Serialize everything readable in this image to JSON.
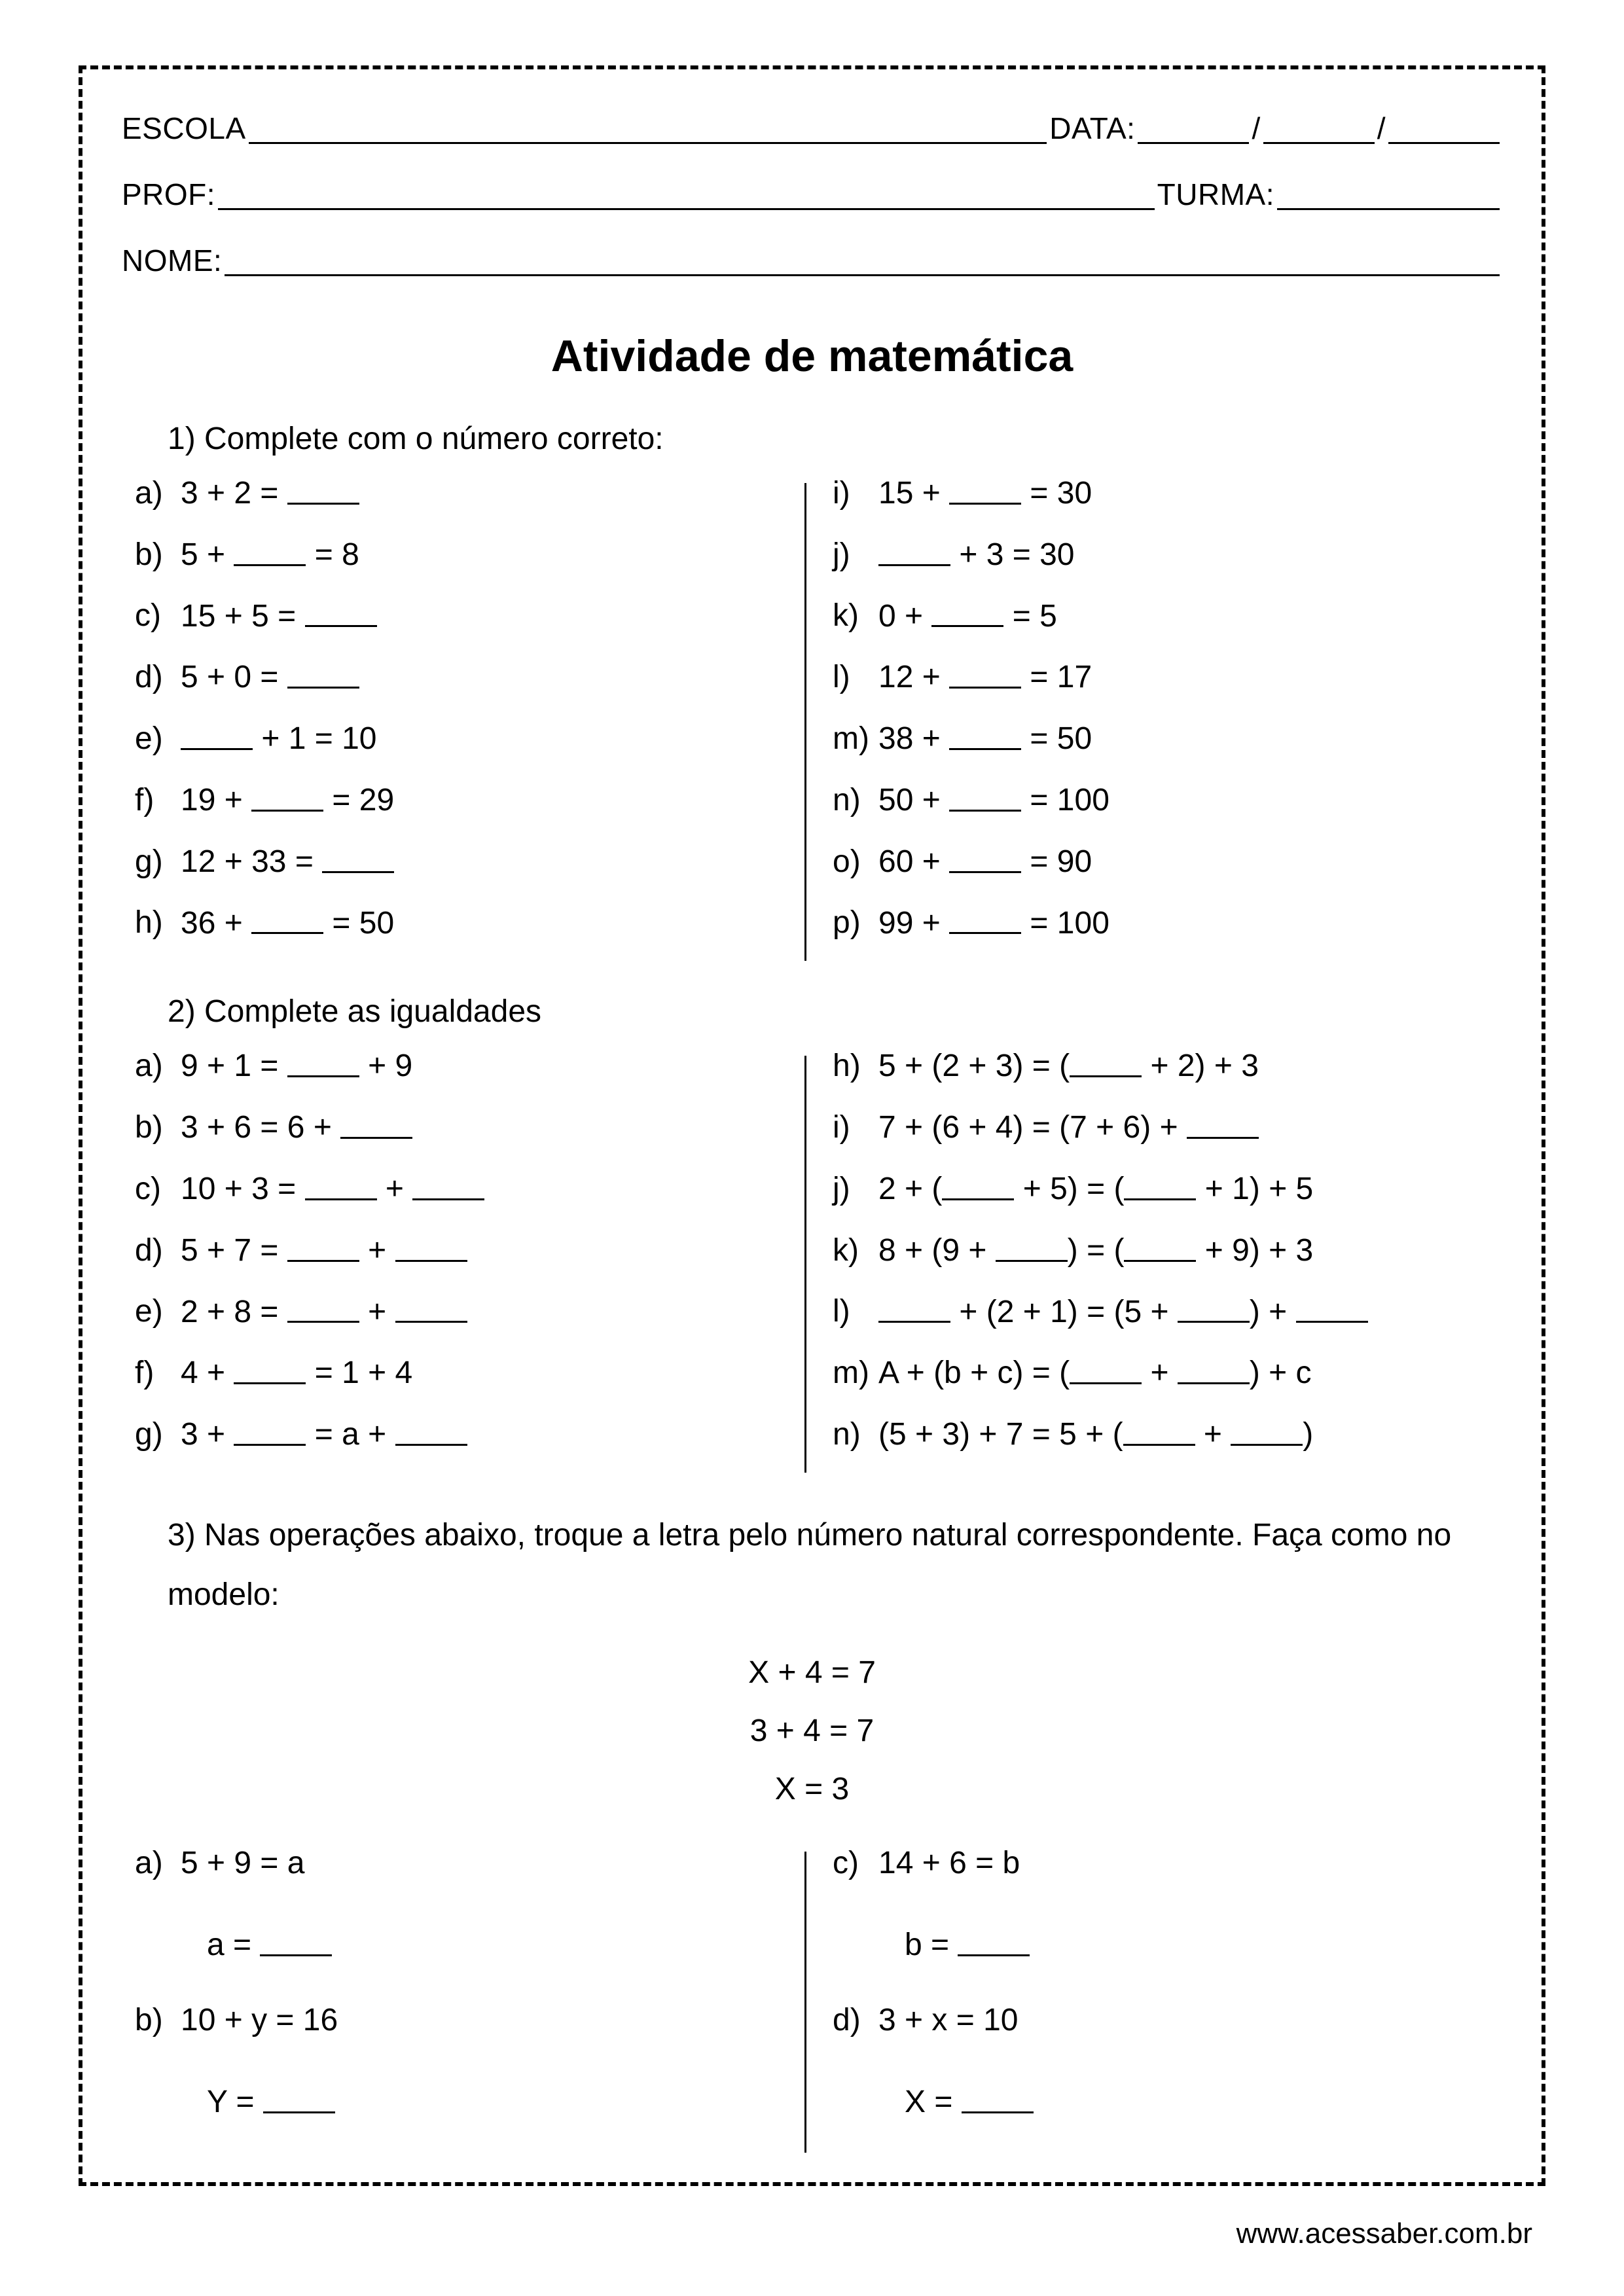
{
  "header": {
    "escola": "ESCOLA",
    "data": "DATA:",
    "prof": "PROF:",
    "turma": "TURMA:",
    "nome": "NOME:"
  },
  "title": "Atividade de matemática",
  "q1": {
    "prompt": "1) Complete com o número correto:",
    "left": [
      {
        "l": "a)",
        "t": "3 + 2 = ____"
      },
      {
        "l": "b)",
        "t": "5 + ____ = 8"
      },
      {
        "l": "c)",
        "t": "15 + 5 = ____"
      },
      {
        "l": "d)",
        "t": "5 + 0 = ____"
      },
      {
        "l": "e)",
        "t": "____ + 1 = 10"
      },
      {
        "l": "f)",
        "t": "19 + ____ = 29"
      },
      {
        "l": "g)",
        "t": "12 + 33 = ____"
      },
      {
        "l": "h)",
        "t": "36 + ____ = 50"
      }
    ],
    "right": [
      {
        "l": "i)",
        "t": "15 + ____ = 30"
      },
      {
        "l": "j)",
        "t": "____ + 3 = 30"
      },
      {
        "l": "k)",
        "t": "0 + ____ = 5"
      },
      {
        "l": "l)",
        "t": "12 + ____ = 17"
      },
      {
        "l": "m)",
        "t": "38 + ____ = 50"
      },
      {
        "l": "n)",
        "t": "50 + ____ = 100"
      },
      {
        "l": "o)",
        "t": "60 + ____ = 90"
      },
      {
        "l": "p)",
        "t": "99 + ____ = 100"
      }
    ]
  },
  "q2": {
    "prompt": "2) Complete as igualdades",
    "left": [
      {
        "l": "a)",
        "t": "9 + 1 = ____ + 9"
      },
      {
        "l": "b)",
        "t": "3 + 6 = 6 + ____"
      },
      {
        "l": "c)",
        "t": "10 + 3 = ____ + ____"
      },
      {
        "l": "d)",
        "t": "5 + 7 = ____ + ____"
      },
      {
        "l": "e)",
        "t": "2 + 8 = ____ + ____"
      },
      {
        "l": "f)",
        "t": "4 + ____ = 1 + 4"
      },
      {
        "l": "g)",
        "t": "3 + ____ = a + ____"
      }
    ],
    "right": [
      {
        "l": "h)",
        "t": "5 + (2 + 3) = (____ + 2) + 3"
      },
      {
        "l": "i)",
        "t": "7 + (6 + 4) = (7 + 6) + ____"
      },
      {
        "l": "j)",
        "t": "2 + (____ + 5) = (____ + 1) + 5"
      },
      {
        "l": "k)",
        "t": "8 + (9 + ____) = (____ + 9) + 3"
      },
      {
        "l": "l)",
        "t": "____ + (2 + 1) = (5 + ____) + ____"
      },
      {
        "l": "m)",
        "t": "A + (b + c) = (____ + ____) + c"
      },
      {
        "l": "n)",
        "t": "(5 + 3) + 7 = 5 + (____ + ____)"
      }
    ]
  },
  "q3": {
    "prompt": "3) Nas operações abaixo, troque a letra pelo número natural correspondente. Faça como no modelo:",
    "model": [
      "X + 4 = 7",
      "3 + 4 = 7",
      "X = 3"
    ],
    "left": [
      {
        "l": "a)",
        "eq": "5 + 9 = a",
        "ans": "a = ____"
      },
      {
        "l": "b)",
        "eq": "10 + y = 16",
        "ans": "Y = ____"
      }
    ],
    "right": [
      {
        "l": "c)",
        "eq": "14 + 6 = b",
        "ans": "b = ____"
      },
      {
        "l": "d)",
        "eq": "3 + x = 10",
        "ans": "X = ____"
      }
    ]
  },
  "footer": "www.acessaber.com.br"
}
